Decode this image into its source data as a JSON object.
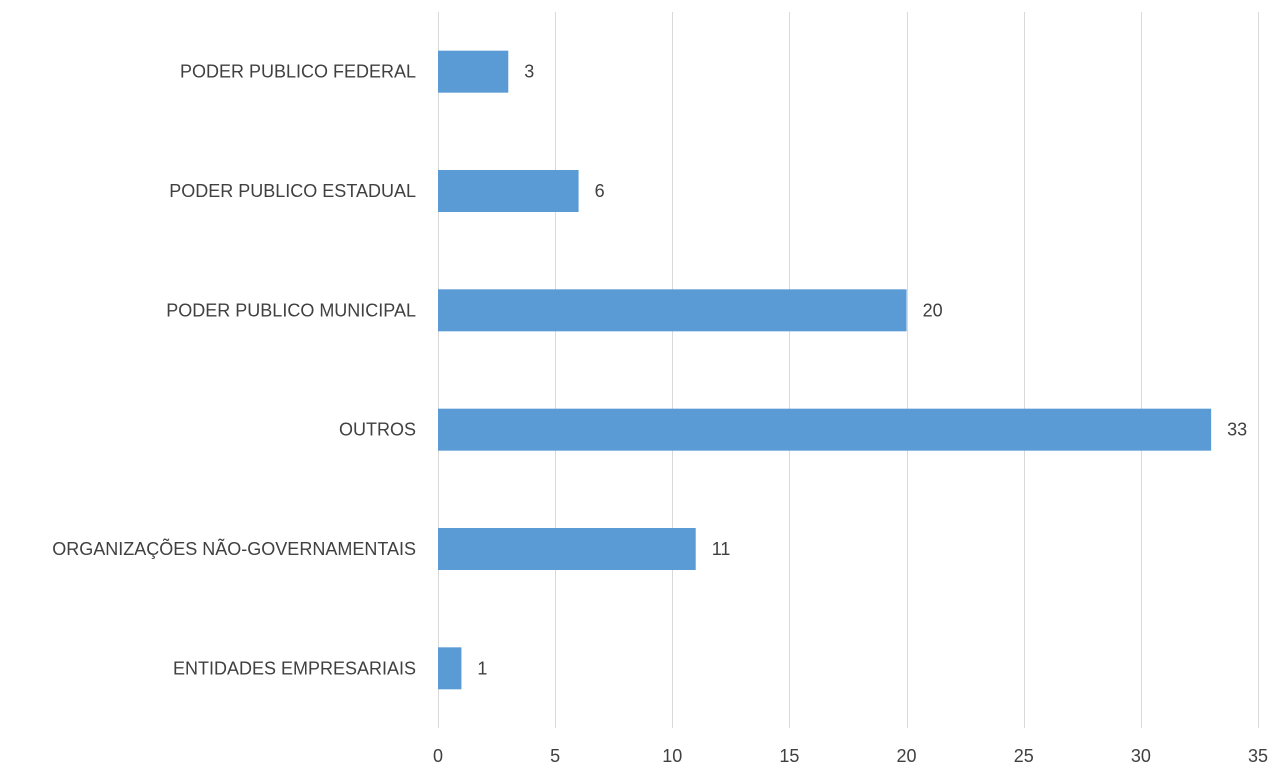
{
  "chart_data": {
    "type": "bar",
    "orientation": "horizontal",
    "categories": [
      "PODER PUBLICO FEDERAL",
      "PODER PUBLICO ESTADUAL",
      "PODER PUBLICO MUNICIPAL",
      "OUTROS",
      "ORGANIZAÇÕES NÃO-GOVERNAMENTAIS",
      "ENTIDADES EMPRESARIAIS"
    ],
    "values": [
      3,
      6,
      20,
      33,
      11,
      1
    ],
    "xlim": [
      0,
      35
    ],
    "xticks": [
      0,
      5,
      10,
      15,
      20,
      25,
      30,
      35
    ],
    "grid": "vertical",
    "data_labels": true,
    "bar_color": "#5b9bd5",
    "title": "",
    "xlabel": "",
    "ylabel": ""
  }
}
